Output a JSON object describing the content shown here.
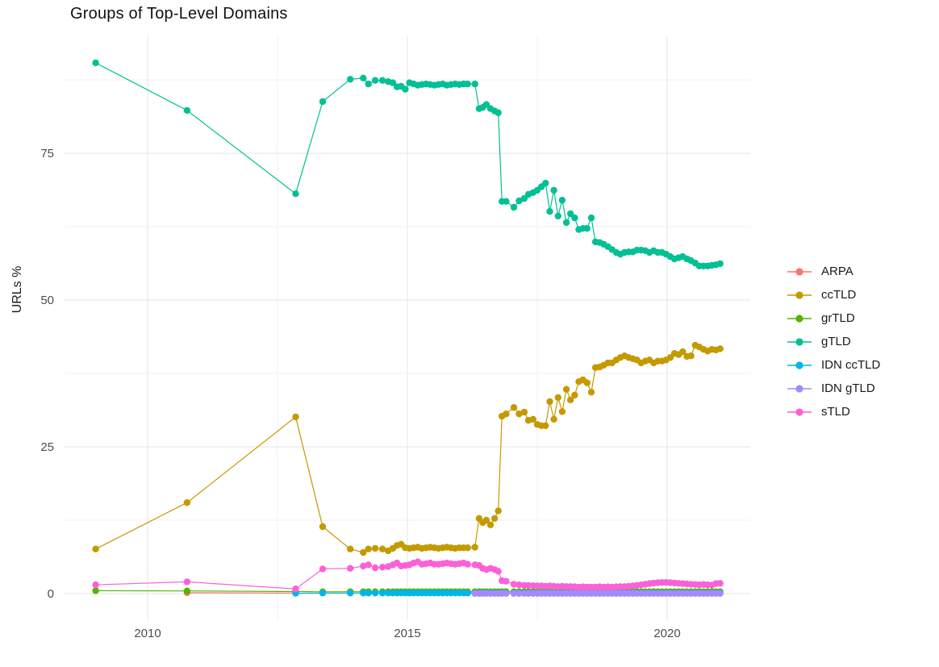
{
  "title": "Groups of Top-Level Domains",
  "y_axis": {
    "label": "URLs %",
    "ticks": [
      "0",
      "25",
      "50",
      "75"
    ],
    "tick_values": [
      0,
      25,
      50,
      75
    ],
    "minor": [
      12.5,
      37.5,
      62.5,
      87.5
    ]
  },
  "x_axis": {
    "ticks": [
      "2010",
      "2015",
      "2020"
    ],
    "tick_values": [
      2010,
      2015,
      2020
    ],
    "minor": [
      2012.5,
      2017.5
    ]
  },
  "legend": {
    "entries": [
      {
        "label": "ARPA",
        "color": "#F8766D"
      },
      {
        "label": "ccTLD",
        "color": "#C49A00"
      },
      {
        "label": "grTLD",
        "color": "#53B400"
      },
      {
        "label": "gTLD",
        "color": "#00C094"
      },
      {
        "label": "IDN ccTLD",
        "color": "#00B6EB"
      },
      {
        "label": "IDN gTLD",
        "color": "#A58AFF"
      },
      {
        "label": "sTLD",
        "color": "#FB61D7"
      }
    ]
  },
  "colors": {
    "grid_major": "#E4E4E4",
    "grid_minor": "#F2F2F2",
    "tick_label": "#4D4D4D",
    "text": "#1a1a1a"
  },
  "chart_data": {
    "type": "line",
    "title": "Groups of Top-Level Domains",
    "xlabel": "",
    "ylabel": "URLs %",
    "xlim": [
      2008.4,
      2021.6
    ],
    "ylim": [
      -4.5,
      94.9
    ],
    "x_major_ticks": [
      2010,
      2015,
      2020
    ],
    "y_major_ticks": [
      0,
      25,
      50,
      75
    ],
    "grid": "major+minor",
    "legend_position": "right",
    "x_dense": [
      2013.9,
      2014.15,
      2014.25,
      2014.38,
      2014.52,
      2014.63,
      2014.72,
      2014.8,
      2014.88,
      2014.96,
      2015.04,
      2015.12,
      2015.2,
      2015.28,
      2015.36,
      2015.44,
      2015.52,
      2015.6,
      2015.68,
      2015.76,
      2015.84,
      2015.92,
      2016.0,
      2016.08,
      2016.16,
      2016.3,
      2016.38,
      2016.45,
      2016.52,
      2016.6,
      2016.68,
      2016.75,
      2016.82,
      2016.9,
      2017.05,
      2017.15,
      2017.25,
      2017.33,
      2017.42,
      2017.5,
      2017.58,
      2017.66,
      2017.74,
      2017.82,
      2017.9,
      2017.98,
      2018.06,
      2018.14,
      2018.22,
      2018.3,
      2018.38,
      2018.46,
      2018.54,
      2018.62,
      2018.7,
      2018.78,
      2018.86,
      2018.94,
      2019.02,
      2019.1,
      2019.18,
      2019.26,
      2019.34,
      2019.42,
      2019.5,
      2019.58,
      2019.66,
      2019.74,
      2019.82,
      2019.9,
      2019.98,
      2020.06,
      2020.14,
      2020.22,
      2020.3,
      2020.38,
      2020.46,
      2020.54,
      2020.62,
      2020.7,
      2020.78,
      2020.86,
      2020.94,
      2021.02
    ],
    "series": [
      {
        "name": "ARPA",
        "color": "#F8766D",
        "early": [
          [
            2010.76,
            0.15
          ],
          [
            2012.85,
            0.1
          ]
        ],
        "dense_from": 0,
        "dense": []
      },
      {
        "name": "ccTLD",
        "color": "#C49A00",
        "early": [
          [
            2009.0,
            7.6
          ],
          [
            2010.76,
            15.5
          ],
          [
            2012.85,
            30.1
          ],
          [
            2013.37,
            11.4
          ]
        ],
        "dense_from": 0,
        "dense": [
          7.6,
          7.0,
          7.6,
          7.7,
          7.6,
          7.3,
          7.7,
          8.2,
          8.4,
          7.8,
          7.7,
          7.8,
          7.9,
          7.7,
          7.8,
          7.9,
          7.8,
          7.7,
          7.8,
          7.9,
          7.8,
          7.7,
          7.8,
          7.8,
          7.8,
          7.9,
          12.8,
          12.1,
          12.5,
          11.7,
          12.8,
          14.1,
          30.2,
          30.6,
          31.7,
          30.6,
          30.9,
          29.5,
          29.7,
          28.8,
          28.6,
          28.6,
          32.7,
          29.7,
          33.4,
          31.0,
          34.8,
          33.0,
          33.8,
          36.1,
          36.4,
          35.9,
          34.3,
          38.5,
          38.6,
          38.9,
          39.3,
          39.3,
          39.8,
          40.2,
          40.5,
          40.2,
          40.0,
          39.8,
          39.3,
          39.6,
          39.8,
          39.3,
          39.6,
          39.6,
          39.8,
          40.2,
          40.9,
          40.7,
          41.2,
          40.4,
          40.5,
          42.3,
          42.0,
          41.6,
          41.3,
          41.6,
          41.5,
          41.7
        ]
      },
      {
        "name": "grTLD",
        "color": "#53B400",
        "early": [
          [
            2009.0,
            0.5
          ],
          [
            2010.76,
            0.45
          ],
          [
            2012.85,
            0.35
          ],
          [
            2013.37,
            0.3
          ]
        ],
        "dense_from": 0,
        "dense_const": 0.32
      },
      {
        "name": "gTLD",
        "color": "#00C094",
        "early": [
          [
            2009.0,
            90.4
          ],
          [
            2010.76,
            82.3
          ],
          [
            2012.85,
            68.1
          ],
          [
            2013.37,
            83.8
          ]
        ],
        "dense_from": 0,
        "dense": [
          87.6,
          87.8,
          86.8,
          87.4,
          87.4,
          87.2,
          87.0,
          86.3,
          86.4,
          85.9,
          87.0,
          86.8,
          86.6,
          86.7,
          86.8,
          86.7,
          86.6,
          86.7,
          86.8,
          86.6,
          86.7,
          86.8,
          86.7,
          86.8,
          86.8,
          86.8,
          82.6,
          82.8,
          83.3,
          82.6,
          82.2,
          81.9,
          66.8,
          66.8,
          65.8,
          66.9,
          67.3,
          68.0,
          68.3,
          68.7,
          69.3,
          69.9,
          65.1,
          68.7,
          64.3,
          67.0,
          63.2,
          64.7,
          64.0,
          62.0,
          62.2,
          62.2,
          64.0,
          59.9,
          59.8,
          59.5,
          59.1,
          58.6,
          58.1,
          57.8,
          58.1,
          58.2,
          58.2,
          58.5,
          58.5,
          58.4,
          58.1,
          58.4,
          58.1,
          58.1,
          57.8,
          57.4,
          57.0,
          57.2,
          57.4,
          57.0,
          56.7,
          56.3,
          55.8,
          55.8,
          55.8,
          55.9,
          56.0,
          56.2
        ]
      },
      {
        "name": "IDN ccTLD",
        "color": "#00B6EB",
        "early": [
          [
            2012.85,
            0.05
          ],
          [
            2013.37,
            0.1
          ]
        ],
        "dense_from": 0,
        "dense_const": 0.1
      },
      {
        "name": "IDN gTLD",
        "color": "#A58AFF",
        "early": [],
        "dense_from": 25,
        "dense_const": 0.03
      },
      {
        "name": "sTLD",
        "color": "#FB61D7",
        "early": [
          [
            2009.0,
            1.5
          ],
          [
            2010.76,
            2.0
          ],
          [
            2012.85,
            0.8
          ],
          [
            2013.37,
            4.2
          ]
        ],
        "dense_from": 0,
        "dense": [
          4.3,
          4.7,
          4.9,
          4.4,
          4.5,
          4.6,
          4.9,
          5.2,
          4.7,
          4.8,
          4.9,
          5.2,
          5.4,
          5.0,
          5.1,
          5.2,
          5.0,
          5.0,
          5.1,
          5.2,
          5.1,
          5.0,
          5.1,
          5.2,
          5.0,
          4.9,
          4.8,
          4.3,
          4.1,
          4.3,
          4.1,
          3.8,
          2.2,
          2.1,
          1.6,
          1.5,
          1.4,
          1.4,
          1.35,
          1.3,
          1.3,
          1.25,
          1.3,
          1.25,
          1.2,
          1.25,
          1.2,
          1.2,
          1.15,
          1.1,
          1.15,
          1.1,
          1.1,
          1.1,
          1.15,
          1.1,
          1.15,
          1.1,
          1.15,
          1.2,
          1.2,
          1.25,
          1.3,
          1.4,
          1.5,
          1.6,
          1.7,
          1.8,
          1.85,
          1.9,
          1.9,
          1.85,
          1.8,
          1.75,
          1.7,
          1.65,
          1.6,
          1.55,
          1.5,
          1.55,
          1.5,
          1.45,
          1.7,
          1.75
        ]
      }
    ]
  }
}
